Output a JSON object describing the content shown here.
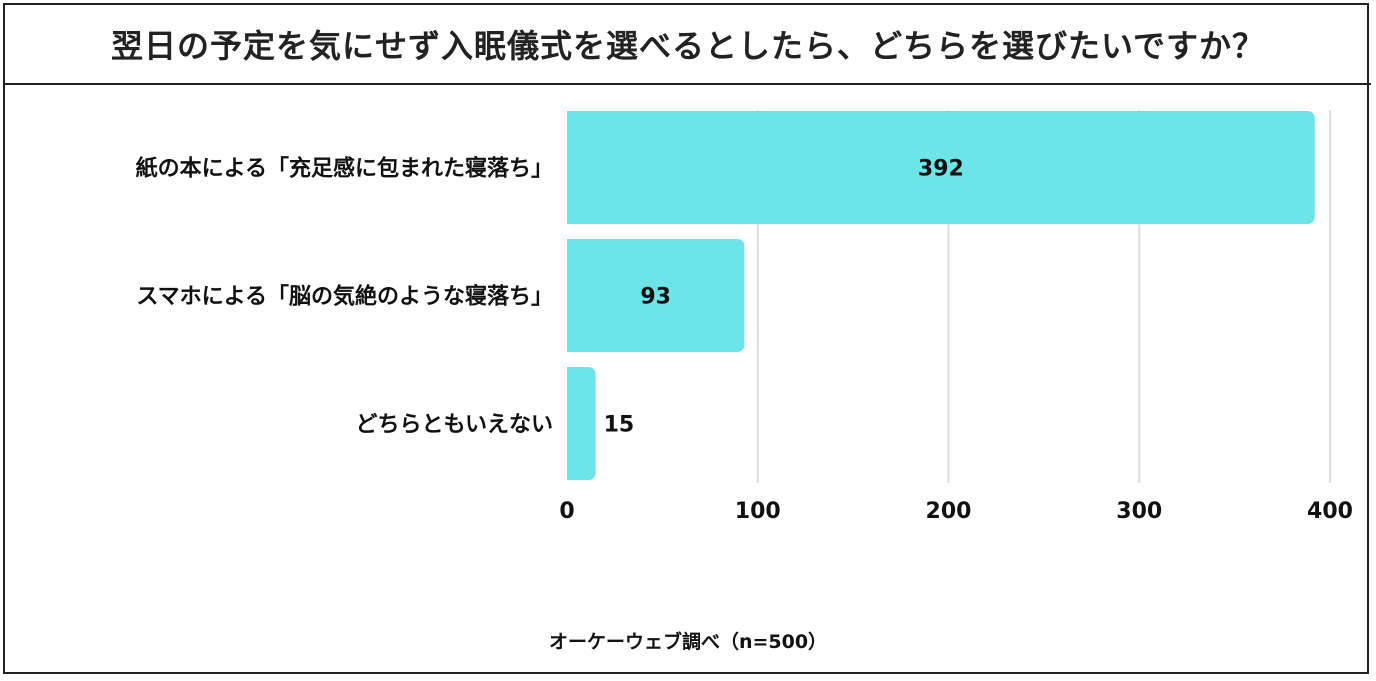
{
  "title": "翌日の予定を気にせず入眠儀式を選べるとしたら、どちらを選びたいですか？",
  "source": "オーケーウェブ調べ（n=500）",
  "colors": {
    "bar": "#6ce5e8",
    "grid": "#dcdcdc",
    "text": "#111111",
    "border": "#222222"
  },
  "chart_data": {
    "type": "bar",
    "orientation": "horizontal",
    "categories": [
      "紙の本による「充足感に包まれた寝落ち」",
      "スマホによる「脳の気絶のような寝落ち」",
      "どちらともいえない"
    ],
    "values": [
      392,
      93,
      15
    ],
    "data_labels": [
      "392",
      "93",
      "15"
    ],
    "xlim": [
      0,
      400
    ],
    "xticks": [
      0,
      100,
      200,
      300,
      400
    ],
    "xtick_labels": [
      "0",
      "100",
      "200",
      "300",
      "400"
    ],
    "grid": "vertical",
    "legend": "none"
  }
}
